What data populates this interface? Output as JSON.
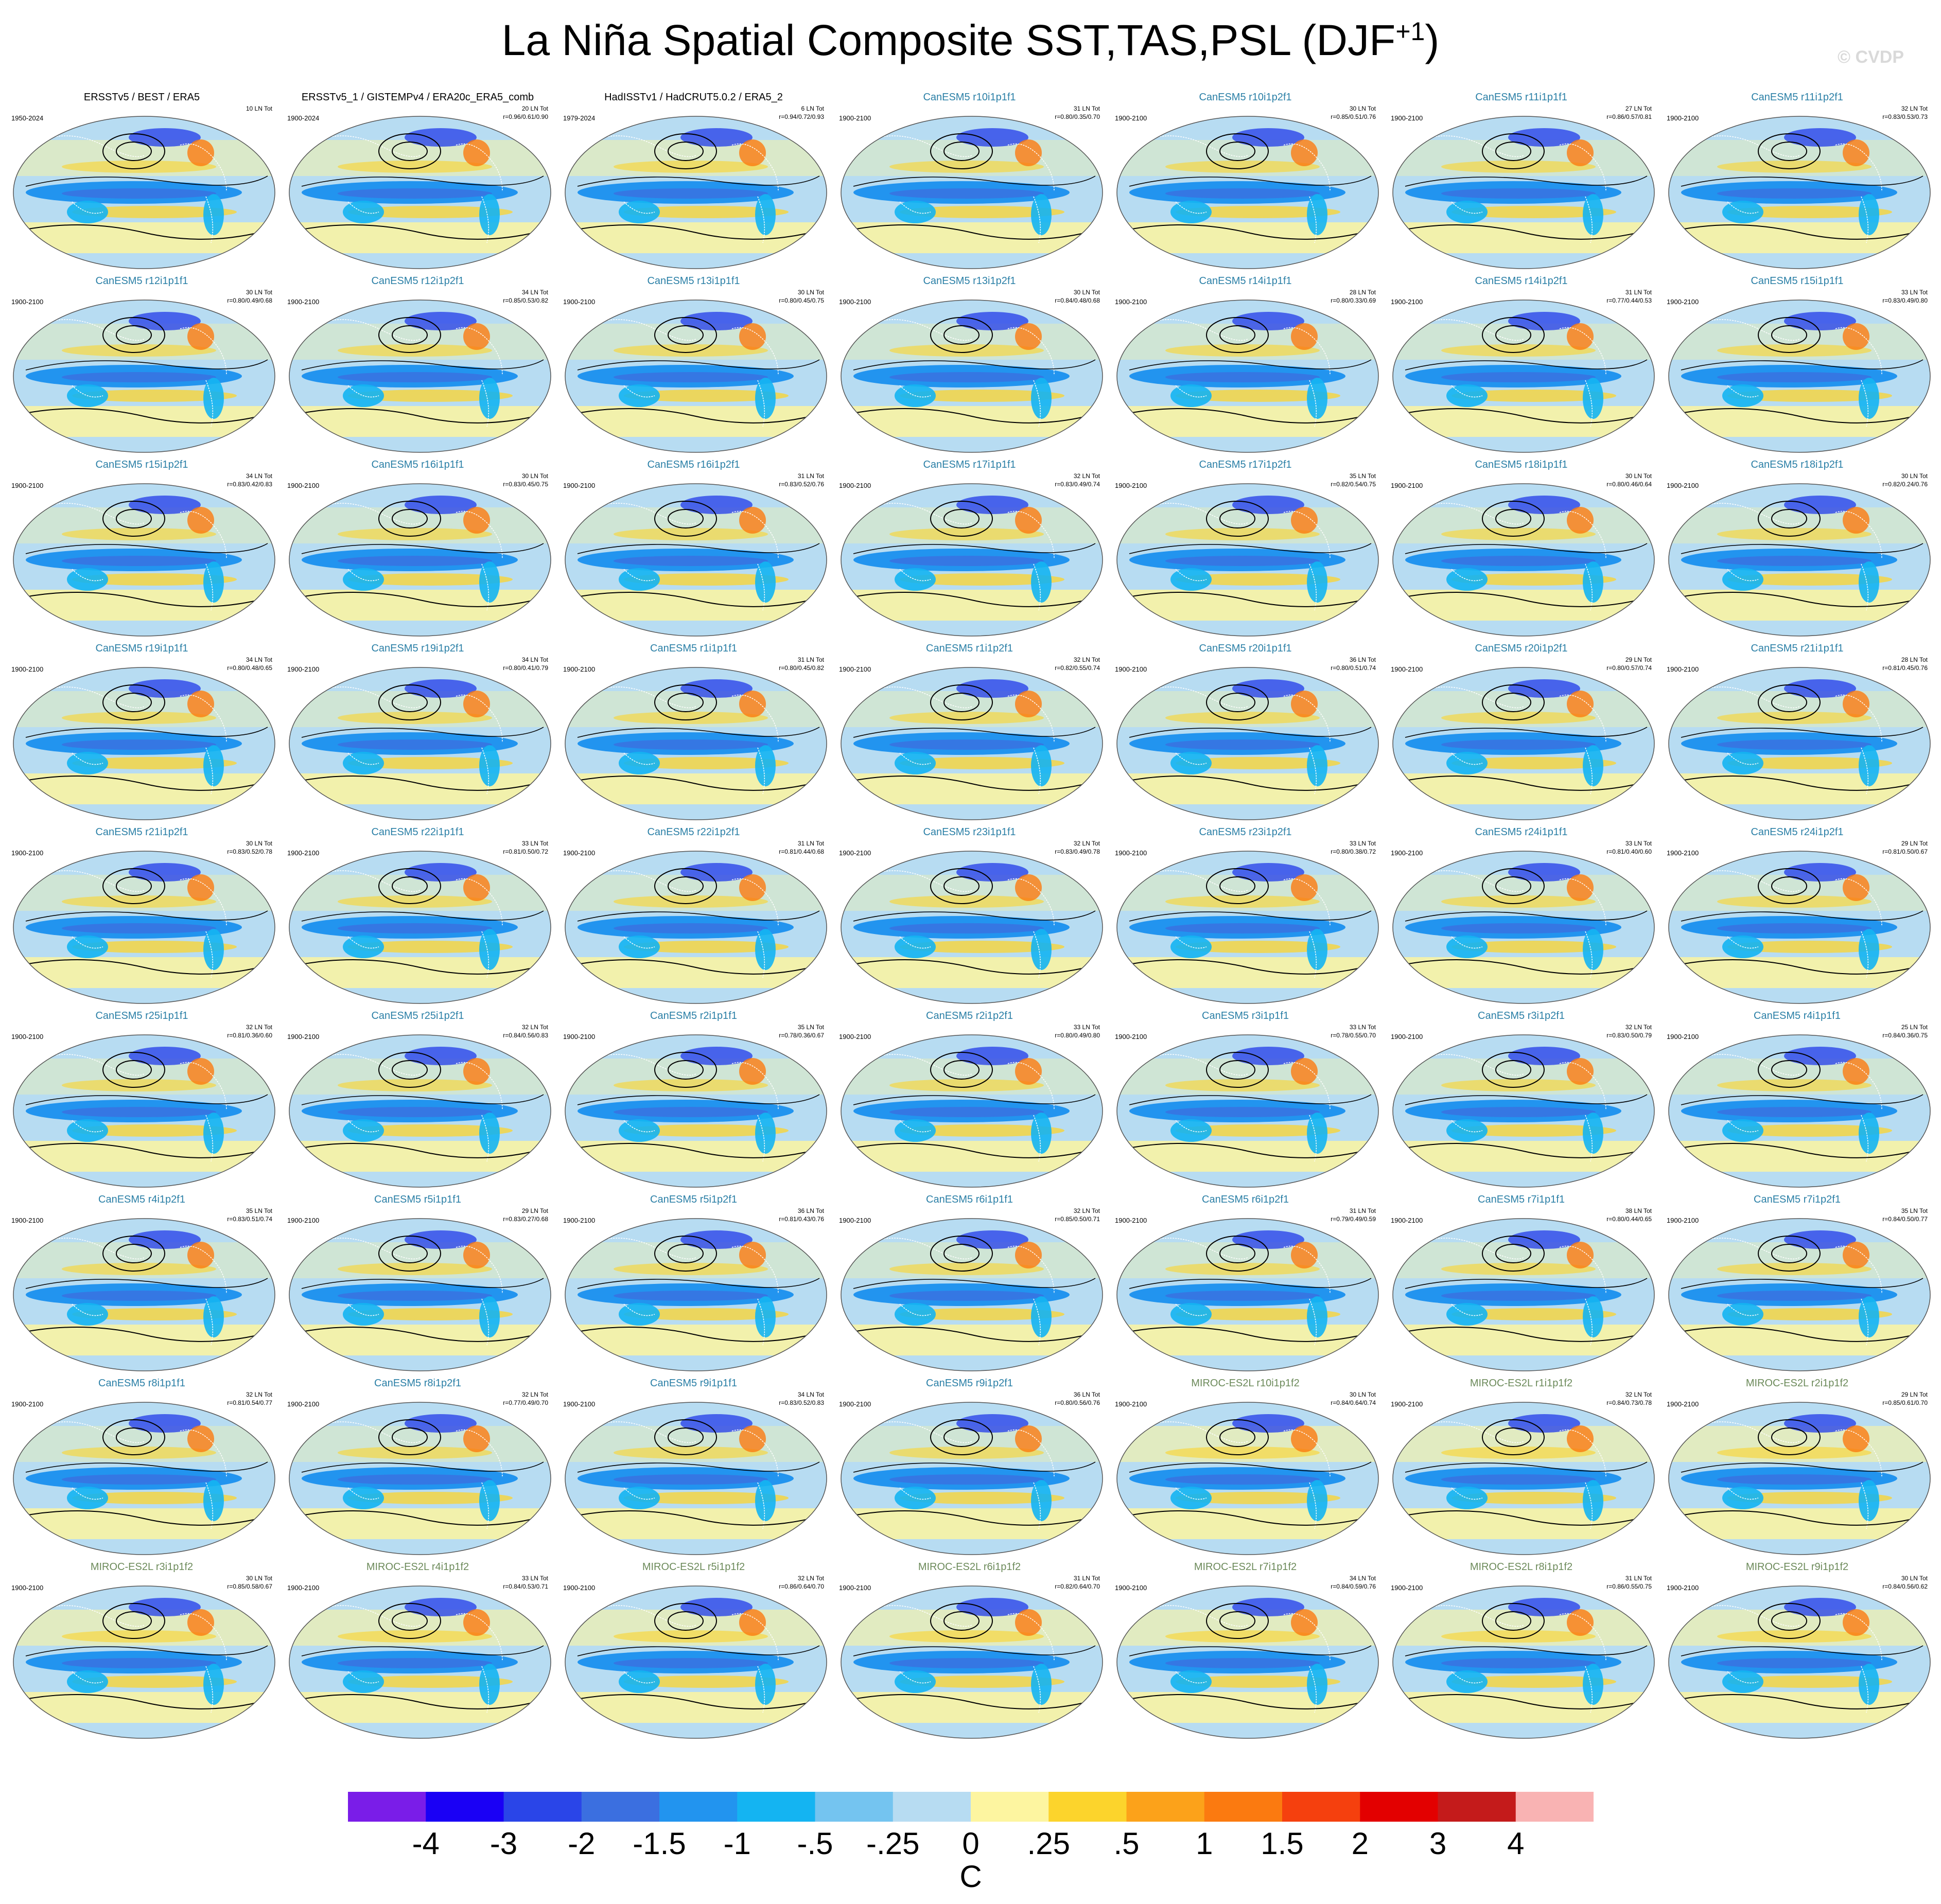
{
  "title": {
    "main": "La Niña Spatial Composite SST,TAS,PSL (DJF",
    "sup": "+1",
    "close": ")"
  },
  "watermark": "© CVDP",
  "colorbar": {
    "unit": "C",
    "labels": [
      "-4",
      "-3",
      "-2",
      "-1.5",
      "-1",
      "-.5",
      "-.25",
      "0",
      ".25",
      ".5",
      "1",
      "1.5",
      "2",
      "3",
      "4"
    ],
    "colors": [
      "#7a1de8",
      "#1a00f5",
      "#2a45e8",
      "#3b6fe0",
      "#2294ef",
      "#14b4f2",
      "#74c4f0",
      "#b7dcf2",
      "#fdf5a0",
      "#fcd42c",
      "#fca21a",
      "#fb7a10",
      "#f5400e",
      "#e30000",
      "#c41b1b",
      "#f9b3b3"
    ]
  },
  "panels": [
    {
      "title": "ERSSTv5 / BEST / ERA5",
      "period": "1950-2024",
      "count": "10 LN Tot",
      "stats": "",
      "kind": "obs"
    },
    {
      "title": "ERSSTv5_1 / GISTEMPv4 / ERA20c_ERA5_comb",
      "period": "1900-2024",
      "count": "20 LN Tot",
      "stats": "r=0.96/0.61/0.90",
      "kind": "obs"
    },
    {
      "title": "HadISSTv1 / HadCRUT5.0.2 / ERA5_2",
      "period": "1979-2024",
      "count": "6 LN Tot",
      "stats": "r=0.94/0.72/0.93",
      "kind": "obs"
    },
    {
      "title": "CanESM5 r10i1p1f1",
      "period": "1900-2100",
      "count": "31 LN Tot",
      "stats": "r=0.80/0.35/0.70",
      "kind": "can"
    },
    {
      "title": "CanESM5 r10i1p2f1",
      "period": "1900-2100",
      "count": "30 LN Tot",
      "stats": "r=0.85/0.51/0.76",
      "kind": "can"
    },
    {
      "title": "CanESM5 r11i1p1f1",
      "period": "1900-2100",
      "count": "27 LN Tot",
      "stats": "r=0.86/0.57/0.81",
      "kind": "can"
    },
    {
      "title": "CanESM5 r11i1p2f1",
      "period": "1900-2100",
      "count": "32 LN Tot",
      "stats": "r=0.83/0.53/0.73",
      "kind": "can"
    },
    {
      "title": "CanESM5 r12i1p1f1",
      "period": "1900-2100",
      "count": "30 LN Tot",
      "stats": "r=0.80/0.49/0.68",
      "kind": "can"
    },
    {
      "title": "CanESM5 r12i1p2f1",
      "period": "1900-2100",
      "count": "34 LN Tot",
      "stats": "r=0.85/0.53/0.82",
      "kind": "can"
    },
    {
      "title": "CanESM5 r13i1p1f1",
      "period": "1900-2100",
      "count": "30 LN Tot",
      "stats": "r=0.80/0.45/0.75",
      "kind": "can"
    },
    {
      "title": "CanESM5 r13i1p2f1",
      "period": "1900-2100",
      "count": "30 LN Tot",
      "stats": "r=0.84/0.48/0.68",
      "kind": "can"
    },
    {
      "title": "CanESM5 r14i1p1f1",
      "period": "1900-2100",
      "count": "28 LN Tot",
      "stats": "r=0.80/0.33/0.69",
      "kind": "can"
    },
    {
      "title": "CanESM5 r14i1p2f1",
      "period": "1900-2100",
      "count": "31 LN Tot",
      "stats": "r=0.77/0.44/0.53",
      "kind": "can"
    },
    {
      "title": "CanESM5 r15i1p1f1",
      "period": "1900-2100",
      "count": "33 LN Tot",
      "stats": "r=0.83/0.49/0.80",
      "kind": "can"
    },
    {
      "title": "CanESM5 r15i1p2f1",
      "period": "1900-2100",
      "count": "34 LN Tot",
      "stats": "r=0.83/0.42/0.83",
      "kind": "can"
    },
    {
      "title": "CanESM5 r16i1p1f1",
      "period": "1900-2100",
      "count": "30 LN Tot",
      "stats": "r=0.83/0.45/0.75",
      "kind": "can"
    },
    {
      "title": "CanESM5 r16i1p2f1",
      "period": "1900-2100",
      "count": "31 LN Tot",
      "stats": "r=0.83/0.52/0.76",
      "kind": "can"
    },
    {
      "title": "CanESM5 r17i1p1f1",
      "period": "1900-2100",
      "count": "32 LN Tot",
      "stats": "r=0.83/0.49/0.74",
      "kind": "can"
    },
    {
      "title": "CanESM5 r17i1p2f1",
      "period": "1900-2100",
      "count": "35 LN Tot",
      "stats": "r=0.82/0.54/0.75",
      "kind": "can"
    },
    {
      "title": "CanESM5 r18i1p1f1",
      "period": "1900-2100",
      "count": "30 LN Tot",
      "stats": "r=0.80/0.46/0.64",
      "kind": "can"
    },
    {
      "title": "CanESM5 r18i1p2f1",
      "period": "1900-2100",
      "count": "30 LN Tot",
      "stats": "r=0.82/0.24/0.76",
      "kind": "can"
    },
    {
      "title": "CanESM5 r19i1p1f1",
      "period": "1900-2100",
      "count": "34 LN Tot",
      "stats": "r=0.80/0.48/0.65",
      "kind": "can"
    },
    {
      "title": "CanESM5 r19i1p2f1",
      "period": "1900-2100",
      "count": "34 LN Tot",
      "stats": "r=0.80/0.41/0.79",
      "kind": "can"
    },
    {
      "title": "CanESM5 r1i1p1f1",
      "period": "1900-2100",
      "count": "31 LN Tot",
      "stats": "r=0.80/0.45/0.82",
      "kind": "can"
    },
    {
      "title": "CanESM5 r1i1p2f1",
      "period": "1900-2100",
      "count": "32 LN Tot",
      "stats": "r=0.82/0.55/0.74",
      "kind": "can"
    },
    {
      "title": "CanESM5 r20i1p1f1",
      "period": "1900-2100",
      "count": "36 LN Tot",
      "stats": "r=0.80/0.51/0.74",
      "kind": "can"
    },
    {
      "title": "CanESM5 r20i1p2f1",
      "period": "1900-2100",
      "count": "29 LN Tot",
      "stats": "r=0.80/0.57/0.74",
      "kind": "can"
    },
    {
      "title": "CanESM5 r21i1p1f1",
      "period": "1900-2100",
      "count": "28 LN Tot",
      "stats": "r=0.81/0.45/0.76",
      "kind": "can"
    },
    {
      "title": "CanESM5 r21i1p2f1",
      "period": "1900-2100",
      "count": "30 LN Tot",
      "stats": "r=0.83/0.52/0.78",
      "kind": "can"
    },
    {
      "title": "CanESM5 r22i1p1f1",
      "period": "1900-2100",
      "count": "33 LN Tot",
      "stats": "r=0.81/0.50/0.72",
      "kind": "can"
    },
    {
      "title": "CanESM5 r22i1p2f1",
      "period": "1900-2100",
      "count": "31 LN Tot",
      "stats": "r=0.81/0.44/0.68",
      "kind": "can"
    },
    {
      "title": "CanESM5 r23i1p1f1",
      "period": "1900-2100",
      "count": "32 LN Tot",
      "stats": "r=0.83/0.49/0.78",
      "kind": "can"
    },
    {
      "title": "CanESM5 r23i1p2f1",
      "period": "1900-2100",
      "count": "33 LN Tot",
      "stats": "r=0.80/0.38/0.72",
      "kind": "can"
    },
    {
      "title": "CanESM5 r24i1p1f1",
      "period": "1900-2100",
      "count": "33 LN Tot",
      "stats": "r=0.81/0.40/0.60",
      "kind": "can"
    },
    {
      "title": "CanESM5 r24i1p2f1",
      "period": "1900-2100",
      "count": "29 LN Tot",
      "stats": "r=0.81/0.50/0.67",
      "kind": "can"
    },
    {
      "title": "CanESM5 r25i1p1f1",
      "period": "1900-2100",
      "count": "32 LN Tot",
      "stats": "r=0.81/0.36/0.60",
      "kind": "can"
    },
    {
      "title": "CanESM5 r25i1p2f1",
      "period": "1900-2100",
      "count": "32 LN Tot",
      "stats": "r=0.84/0.56/0.83",
      "kind": "can"
    },
    {
      "title": "CanESM5 r2i1p1f1",
      "period": "1900-2100",
      "count": "35 LN Tot",
      "stats": "r=0.78/0.36/0.67",
      "kind": "can"
    },
    {
      "title": "CanESM5 r2i1p2f1",
      "period": "1900-2100",
      "count": "33 LN Tot",
      "stats": "r=0.80/0.49/0.80",
      "kind": "can"
    },
    {
      "title": "CanESM5 r3i1p1f1",
      "period": "1900-2100",
      "count": "33 LN Tot",
      "stats": "r=0.78/0.55/0.70",
      "kind": "can"
    },
    {
      "title": "CanESM5 r3i1p2f1",
      "period": "1900-2100",
      "count": "32 LN Tot",
      "stats": "r=0.83/0.50/0.79",
      "kind": "can"
    },
    {
      "title": "CanESM5 r4i1p1f1",
      "period": "1900-2100",
      "count": "25 LN Tot",
      "stats": "r=0.84/0.36/0.75",
      "kind": "can"
    },
    {
      "title": "CanESM5 r4i1p2f1",
      "period": "1900-2100",
      "count": "35 LN Tot",
      "stats": "r=0.83/0.51/0.74",
      "kind": "can"
    },
    {
      "title": "CanESM5 r5i1p1f1",
      "period": "1900-2100",
      "count": "29 LN Tot",
      "stats": "r=0.83/0.27/0.68",
      "kind": "can"
    },
    {
      "title": "CanESM5 r5i1p2f1",
      "period": "1900-2100",
      "count": "36 LN Tot",
      "stats": "r=0.81/0.43/0.76",
      "kind": "can"
    },
    {
      "title": "CanESM5 r6i1p1f1",
      "period": "1900-2100",
      "count": "32 LN Tot",
      "stats": "r=0.85/0.50/0.71",
      "kind": "can"
    },
    {
      "title": "CanESM5 r6i1p2f1",
      "period": "1900-2100",
      "count": "31 LN Tot",
      "stats": "r=0.79/0.49/0.59",
      "kind": "can"
    },
    {
      "title": "CanESM5 r7i1p1f1",
      "period": "1900-2100",
      "count": "38 LN Tot",
      "stats": "r=0.80/0.44/0.65",
      "kind": "can"
    },
    {
      "title": "CanESM5 r7i1p2f1",
      "period": "1900-2100",
      "count": "35 LN Tot",
      "stats": "r=0.84/0.50/0.77",
      "kind": "can"
    },
    {
      "title": "CanESM5 r8i1p1f1",
      "period": "1900-2100",
      "count": "32 LN Tot",
      "stats": "r=0.81/0.54/0.77",
      "kind": "can"
    },
    {
      "title": "CanESM5 r8i1p2f1",
      "period": "1900-2100",
      "count": "32 LN Tot",
      "stats": "r=0.77/0.49/0.70",
      "kind": "can"
    },
    {
      "title": "CanESM5 r9i1p1f1",
      "period": "1900-2100",
      "count": "34 LN Tot",
      "stats": "r=0.83/0.52/0.83",
      "kind": "can"
    },
    {
      "title": "CanESM5 r9i1p2f1",
      "period": "1900-2100",
      "count": "36 LN Tot",
      "stats": "r=0.80/0.56/0.76",
      "kind": "can"
    },
    {
      "title": "MIROC-ES2L r10i1p1f2",
      "period": "1900-2100",
      "count": "30 LN Tot",
      "stats": "r=0.84/0.64/0.74",
      "kind": "mir"
    },
    {
      "title": "MIROC-ES2L r1i1p1f2",
      "period": "1900-2100",
      "count": "32 LN Tot",
      "stats": "r=0.84/0.73/0.78",
      "kind": "mir"
    },
    {
      "title": "MIROC-ES2L r2i1p1f2",
      "period": "1900-2100",
      "count": "29 LN Tot",
      "stats": "r=0.85/0.61/0.70",
      "kind": "mir"
    },
    {
      "title": "MIROC-ES2L r3i1p1f2",
      "period": "1900-2100",
      "count": "30 LN Tot",
      "stats": "r=0.85/0.58/0.67",
      "kind": "mir"
    },
    {
      "title": "MIROC-ES2L r4i1p1f2",
      "period": "1900-2100",
      "count": "33 LN Tot",
      "stats": "r=0.84/0.53/0.71",
      "kind": "mir"
    },
    {
      "title": "MIROC-ES2L r5i1p1f2",
      "period": "1900-2100",
      "count": "32 LN Tot",
      "stats": "r=0.86/0.64/0.70",
      "kind": "mir"
    },
    {
      "title": "MIROC-ES2L r6i1p1f2",
      "period": "1900-2100",
      "count": "31 LN Tot",
      "stats": "r=0.82/0.64/0.70",
      "kind": "mir"
    },
    {
      "title": "MIROC-ES2L r7i1p1f2",
      "period": "1900-2100",
      "count": "34 LN Tot",
      "stats": "r=0.84/0.59/0.76",
      "kind": "mir"
    },
    {
      "title": "MIROC-ES2L r8i1p1f2",
      "period": "1900-2100",
      "count": "31 LN Tot",
      "stats": "r=0.86/0.55/0.75",
      "kind": "mir"
    },
    {
      "title": "MIROC-ES2L r9i1p1f2",
      "period": "1900-2100",
      "count": "30 LN Tot",
      "stats": "r=0.84/0.56/0.62",
      "kind": "mir"
    }
  ]
}
